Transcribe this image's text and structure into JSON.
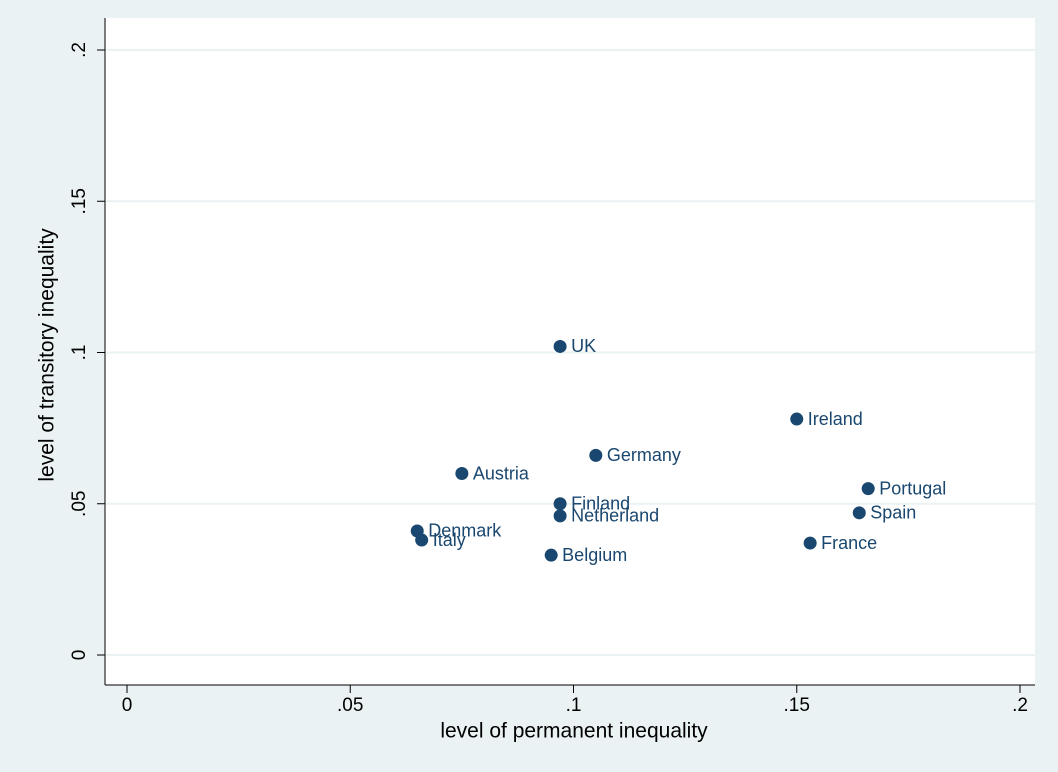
{
  "chart_data": {
    "type": "scatter",
    "x_label": "level of permanent inequality",
    "y_label": "level of transitory inequality",
    "color": "#1a476f",
    "point_labels": [
      "UK",
      "Ireland",
      "Germany",
      "Austria",
      "Portugal",
      "Finland",
      "Spain",
      "Netherland",
      "Denmark",
      "Italy",
      "France",
      "Belgium"
    ],
    "x": [
      0.097,
      0.15,
      0.105,
      0.075,
      0.166,
      0.097,
      0.164,
      0.097,
      0.065,
      0.066,
      0.153,
      0.095
    ],
    "y": [
      0.102,
      0.078,
      0.066,
      0.06,
      0.055,
      0.05,
      0.047,
      0.046,
      0.041,
      0.038,
      0.037,
      0.033
    ],
    "xlim": [
      0,
      0.2
    ],
    "ylim": [
      0,
      0.2
    ],
    "xticks": [
      0,
      {
        "value": 0.05,
        "label": ".05"
      },
      {
        "value": 0.1,
        "label": ".1"
      },
      {
        "value": 0.15,
        "label": ".15"
      },
      {
        "value": 0.2,
        "label": ".2"
      }
    ],
    "yticks": [
      0,
      {
        "value": 0.05,
        "label": ".05"
      },
      {
        "value": 0.1,
        "label": ".1"
      },
      {
        "value": 0.15,
        "label": ".15"
      },
      {
        "value": 0.2,
        "label": ".2"
      }
    ],
    "grid": true
  }
}
